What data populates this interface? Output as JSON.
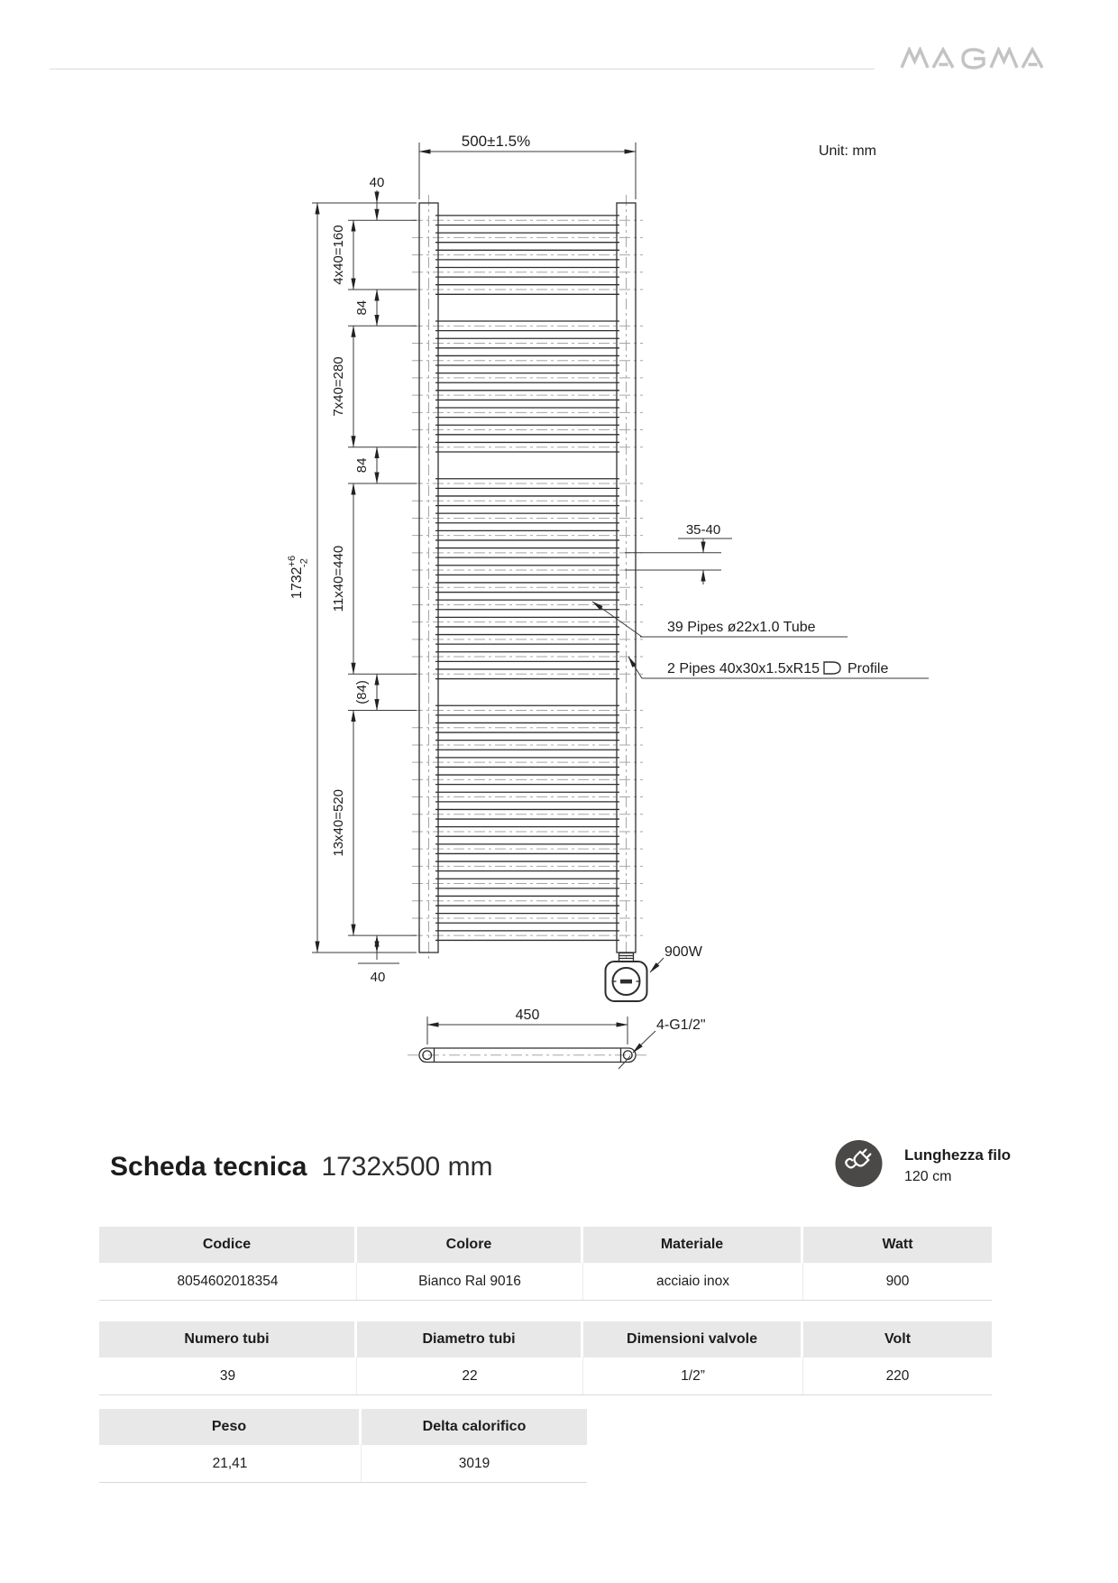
{
  "brand": {
    "logo": "MAGMA"
  },
  "drawing": {
    "unit": "Unit: mm",
    "pipe_groups": [
      5,
      8,
      12,
      14
    ],
    "dims": {
      "width_top": "500±1.5%",
      "offset_top": "40",
      "group1": "4x40=160",
      "gap1": "84",
      "group2": "7x40=280",
      "gap2": "84",
      "group3": "11x40=440",
      "gap3": "(84)",
      "group4": "13x40=520",
      "offset_bottom": "40",
      "height": "1732",
      "height_tol_plus": "+6",
      "height_tol_minus": "-2",
      "wall_bracket": "35-40",
      "width_bottom": "450"
    },
    "labels": {
      "pipes": "39 Pipes  ø22x1.0 Tube",
      "profile_prefix": "2 Pipes 40x30x1.5xR15",
      "profile_suffix": "Profile",
      "power": "900W",
      "connections": "4-G1/2\""
    }
  },
  "title": {
    "name": "Scheda tecnica",
    "size": "1732x500 mm"
  },
  "cable": {
    "label": "Lunghezza filo",
    "value": "120 cm"
  },
  "tables": [
    {
      "headers": [
        "Codice",
        "Colore",
        "Materiale",
        "Watt"
      ],
      "rows": [
        [
          "8054602018354",
          "Bianco Ral 9016",
          "acciaio inox",
          "900"
        ]
      ]
    },
    {
      "headers": [
        "Numero tubi",
        "Diametro tubi",
        "Dimensioni valvole",
        "Volt"
      ],
      "rows": [
        [
          "39",
          "22",
          "1/2”",
          "220"
        ]
      ]
    },
    {
      "headers": [
        "Peso",
        "Delta calorifico"
      ],
      "rows": [
        [
          "21,41",
          "3019"
        ]
      ]
    }
  ]
}
